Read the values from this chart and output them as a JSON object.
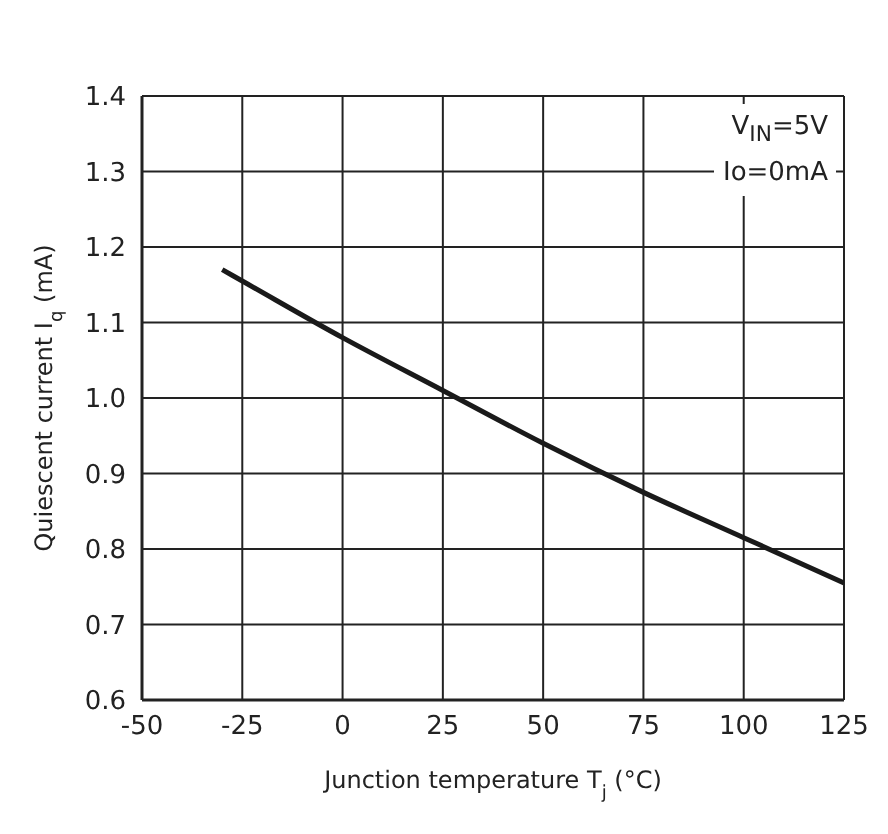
{
  "chart_data": {
    "type": "line",
    "xlabel": "Junction temperature T$_{j}$ (°C)",
    "ylabel": "Quiescent current I$_{q}$ (mA)",
    "annotations": [
      "V$_{IN}$=5V",
      "Io=0mA"
    ],
    "x": [
      -30,
      -25,
      0,
      25,
      50,
      75,
      100,
      125
    ],
    "series": [
      {
        "color": "#1a1a1a",
        "values": [
          1.17,
          1.155,
          1.08,
          1.01,
          0.94,
          0.875,
          0.815,
          0.755
        ]
      }
    ],
    "xlim": [
      -50,
      125
    ],
    "xticks": [
      -50,
      -25,
      0,
      25,
      50,
      75,
      100,
      125
    ],
    "ylim": [
      0.6,
      1.4
    ],
    "yticks": [
      0.6,
      0.7,
      0.8,
      0.9,
      {
        "value": 1,
        "label": "1.0"
      },
      1.1,
      1.2,
      1.3,
      1.4
    ],
    "grid": true,
    "legend": false,
    "marker": "none",
    "line_style": "solid"
  }
}
